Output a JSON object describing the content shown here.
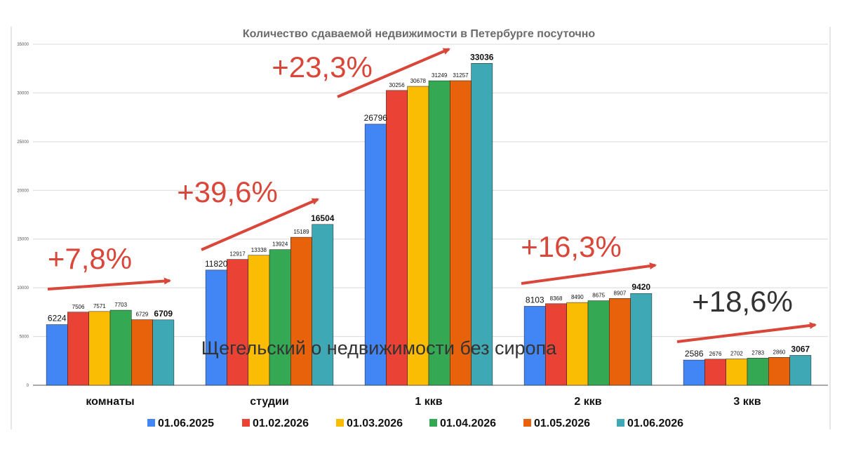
{
  "watermark": "Щегельский о недвижимости без сиропа",
  "chart_data": {
    "type": "bar",
    "title": "Количество сдаваемой недвижимости в Петербурге посуточно",
    "xlabel": "",
    "ylabel": "",
    "ylim": [
      0,
      35000
    ],
    "yticks": [
      0,
      5000,
      10000,
      15000,
      20000,
      25000,
      30000,
      35000
    ],
    "grid": true,
    "legend_position": "bottom",
    "categories": [
      "комнаты",
      "студии",
      "1 ккв",
      "2 ккв",
      "3 ккв"
    ],
    "series": [
      {
        "name": "01.06.2025",
        "color": "#4285f4",
        "values": [
          6224,
          11820,
          26796,
          8103,
          2586
        ]
      },
      {
        "name": "01.02.2026",
        "color": "#ea4335",
        "values": [
          7506,
          12917,
          30256,
          8368,
          2676
        ]
      },
      {
        "name": "01.03.2026",
        "color": "#fbbc04",
        "values": [
          7571,
          13338,
          30678,
          8490,
          2702
        ]
      },
      {
        "name": "01.04.2026",
        "color": "#34a853",
        "values": [
          7703,
          13924,
          31249,
          8675,
          2783
        ]
      },
      {
        "name": "01.05.2026",
        "color": "#e8620c",
        "values": [
          6729,
          15189,
          31257,
          8907,
          2860
        ]
      },
      {
        "name": "01.06.2026",
        "color": "#3ea9b4",
        "values": [
          6709,
          16504,
          33036,
          9420,
          3067
        ]
      }
    ],
    "annotations": [
      {
        "category": "комнаты",
        "text": "+7,8%",
        "color": "#d9463a"
      },
      {
        "category": "студии",
        "text": "+39,6%",
        "color": "#d9463a"
      },
      {
        "category": "1 ккв",
        "text": "+23,3%",
        "color": "#d9463a"
      },
      {
        "category": "2 ккв",
        "text": "+16,3%",
        "color": "#d9463a"
      },
      {
        "category": "3 ккв",
        "text": "+18,6%",
        "color": "#333333"
      }
    ]
  }
}
